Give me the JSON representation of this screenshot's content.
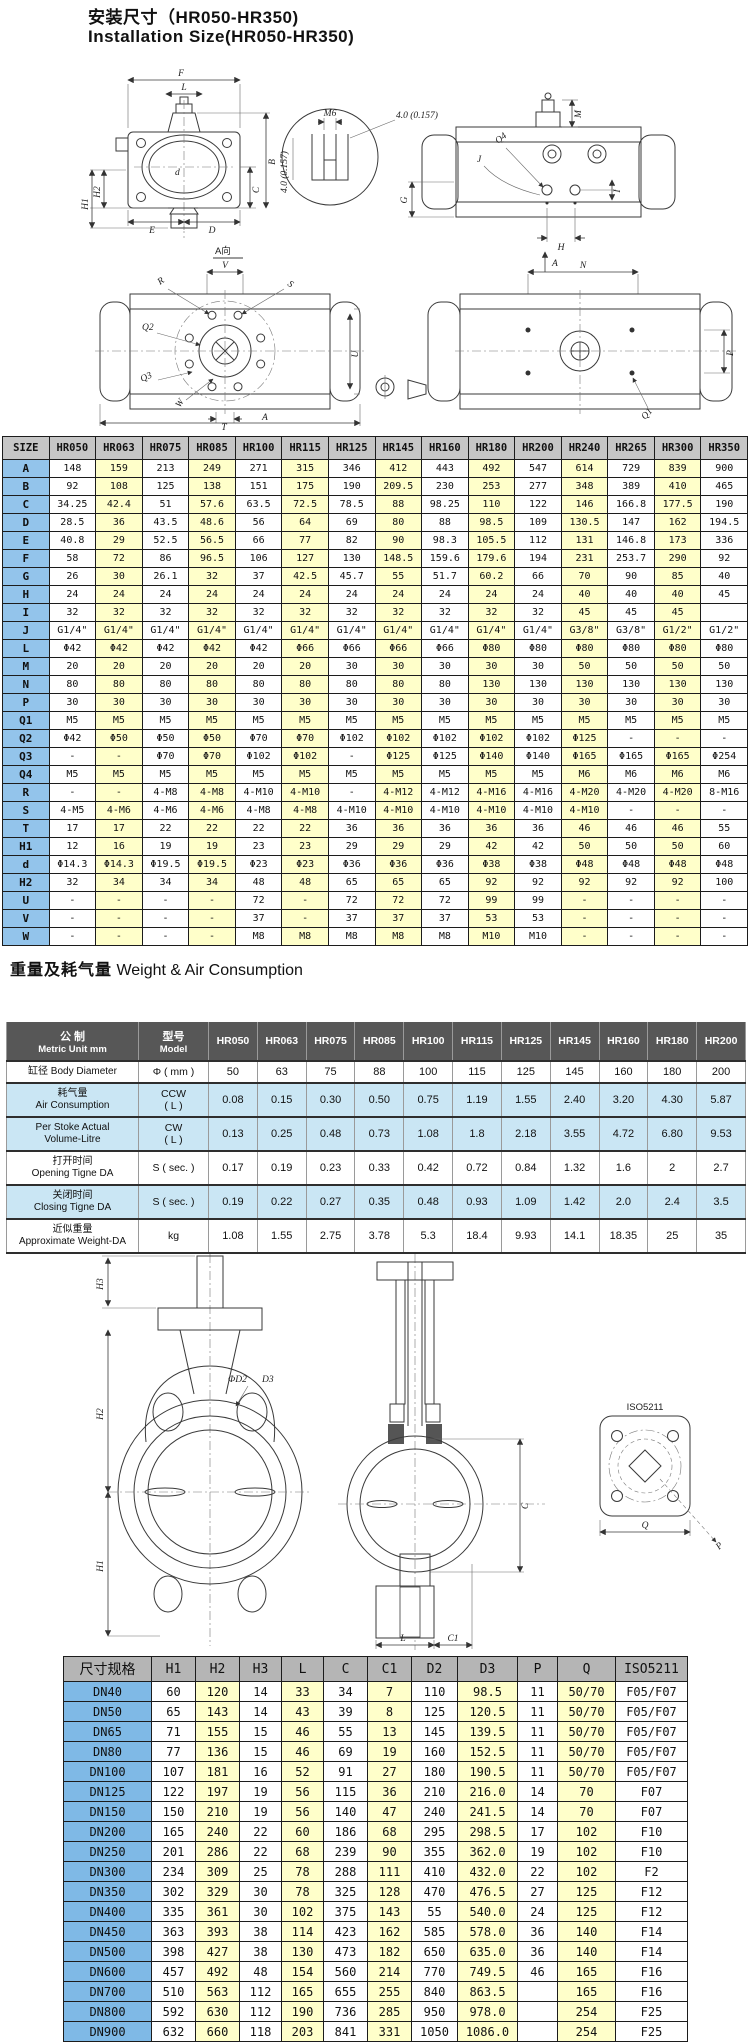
{
  "page": {
    "title_cn": "安装尺寸（HR050-HR350)",
    "title_en": "Installation Size(HR050-HR350)"
  },
  "drawing1": {
    "labels": {
      "f": "F",
      "l": "L",
      "b": "B",
      "c": "C",
      "d": "d",
      "h1": "H1",
      "h2": "H2",
      "e": "E",
      "dd": "D",
      "m6": "M6",
      "dim157": "4.0 (0.157)",
      "m": "M",
      "q4": "Q4",
      "j": "J",
      "i": "I",
      "g": "G",
      "h": "H",
      "a": "A",
      "a_view": "A向",
      "v": "V",
      "r": "R",
      "s": "S",
      "q2": "Q2",
      "q3": "Q3",
      "u": "U",
      "t": "T",
      "w": "W",
      "n": "N",
      "p": "P",
      "q1": "Q1"
    }
  },
  "table1": {
    "header": [
      "SIZE",
      "HR050",
      "HR063",
      "HR075",
      "HR085",
      "HR100",
      "HR115",
      "HR125",
      "HR145",
      "HR160",
      "HR180",
      "HR200",
      "HR240",
      "HR265",
      "HR300",
      "HR350"
    ],
    "rows": [
      {
        "label": "A",
        "values": [
          "148",
          "159",
          "213",
          "249",
          "271",
          "315",
          "346",
          "412",
          "443",
          "492",
          "547",
          "614",
          "729",
          "839",
          "900"
        ]
      },
      {
        "label": "B",
        "values": [
          "92",
          "108",
          "125",
          "138",
          "151",
          "175",
          "190",
          "209.5",
          "230",
          "253",
          "277",
          "348",
          "389",
          "410",
          "465"
        ]
      },
      {
        "label": "C",
        "values": [
          "34.25",
          "42.4",
          "51",
          "57.6",
          "63.5",
          "72.5",
          "78.5",
          "88",
          "98.25",
          "110",
          "122",
          "146",
          "166.8",
          "177.5",
          "190"
        ]
      },
      {
        "label": "D",
        "values": [
          "28.5",
          "36",
          "43.5",
          "48.6",
          "56",
          "64",
          "69",
          "80",
          "88",
          "98.5",
          "109",
          "130.5",
          "147",
          "162",
          "194.5"
        ]
      },
      {
        "label": "E",
        "values": [
          "40.8",
          "29",
          "52.5",
          "56.5",
          "66",
          "77",
          "82",
          "90",
          "98.3",
          "105.5",
          "112",
          "131",
          "146.8",
          "173",
          "336"
        ]
      },
      {
        "label": "F",
        "values": [
          "58",
          "72",
          "86",
          "96.5",
          "106",
          "127",
          "130",
          "148.5",
          "159.6",
          "179.6",
          "194",
          "231",
          "253.7",
          "290",
          "92"
        ]
      },
      {
        "label": "G",
        "values": [
          "26",
          "30",
          "26.1",
          "32",
          "37",
          "42.5",
          "45.7",
          "55",
          "51.7",
          "60.2",
          "66",
          "70",
          "90",
          "85",
          "40"
        ]
      },
      {
        "label": "H",
        "values": [
          "24",
          "24",
          "24",
          "24",
          "24",
          "24",
          "24",
          "24",
          "24",
          "24",
          "24",
          "40",
          "40",
          "40",
          "45"
        ]
      },
      {
        "label": "I",
        "values": [
          "32",
          "32",
          "32",
          "32",
          "32",
          "32",
          "32",
          "32",
          "32",
          "32",
          "32",
          "45",
          "45",
          "45",
          ""
        ]
      },
      {
        "label": "J",
        "values": [
          "G1/4\"",
          "G1/4\"",
          "G1/4\"",
          "G1/4\"",
          "G1/4\"",
          "G1/4\"",
          "G1/4\"",
          "G1/4\"",
          "G1/4\"",
          "G1/4\"",
          "G1/4\"",
          "G3/8\"",
          "G3/8\"",
          "G1/2\"",
          "G1/2\""
        ]
      },
      {
        "label": "L",
        "values": [
          "Φ42",
          "Φ42",
          "Φ42",
          "Φ42",
          "Φ42",
          "Φ66",
          "Φ66",
          "Φ66",
          "Φ66",
          "Φ80",
          "Φ80",
          "Φ80",
          "Φ80",
          "Φ80",
          "Φ80"
        ]
      },
      {
        "label": "M",
        "values": [
          "20",
          "20",
          "20",
          "20",
          "20",
          "20",
          "30",
          "30",
          "30",
          "30",
          "30",
          "50",
          "50",
          "50",
          "50"
        ]
      },
      {
        "label": "N",
        "values": [
          "80",
          "80",
          "80",
          "80",
          "80",
          "80",
          "80",
          "80",
          "80",
          "130",
          "130",
          "130",
          "130",
          "130",
          "130"
        ]
      },
      {
        "label": "P",
        "values": [
          "30",
          "30",
          "30",
          "30",
          "30",
          "30",
          "30",
          "30",
          "30",
          "30",
          "30",
          "30",
          "30",
          "30",
          "30"
        ]
      },
      {
        "label": "Q1",
        "values": [
          "M5",
          "M5",
          "M5",
          "M5",
          "M5",
          "M5",
          "M5",
          "M5",
          "M5",
          "M5",
          "M5",
          "M5",
          "M5",
          "M5",
          "M5"
        ]
      },
      {
        "label": "Q2",
        "values": [
          "Φ42",
          "Φ50",
          "Φ50",
          "Φ50",
          "Φ70",
          "Φ70",
          "Φ102",
          "Φ102",
          "Φ102",
          "Φ102",
          "Φ102",
          "Φ125",
          "-",
          "-",
          "-"
        ]
      },
      {
        "label": "Q3",
        "values": [
          "-",
          "-",
          "Φ70",
          "Φ70",
          "Φ102",
          "Φ102",
          "-",
          "Φ125",
          "Φ125",
          "Φ140",
          "Φ140",
          "Φ165",
          "Φ165",
          "Φ165",
          "Φ254"
        ]
      },
      {
        "label": "Q4",
        "values": [
          "M5",
          "M5",
          "M5",
          "M5",
          "M5",
          "M5",
          "M5",
          "M5",
          "M5",
          "M5",
          "M5",
          "M6",
          "M6",
          "M6",
          "M6"
        ]
      },
      {
        "label": "R",
        "values": [
          "-",
          "-",
          "4-M8",
          "4-M8",
          "4-M10",
          "4-M10",
          "-",
          "4-M12",
          "4-M12",
          "4-M16",
          "4-M16",
          "4-M20",
          "4-M20",
          "4-M20",
          "8-M16"
        ]
      },
      {
        "label": "S",
        "values": [
          "4-M5",
          "4-M6",
          "4-M6",
          "4-M6",
          "4-M8",
          "4-M8",
          "4-M10",
          "4-M10",
          "4-M10",
          "4-M10",
          "4-M10",
          "4-M10",
          "-",
          "-",
          "-"
        ]
      },
      {
        "label": "T",
        "values": [
          "17",
          "17",
          "22",
          "22",
          "22",
          "22",
          "36",
          "36",
          "36",
          "36",
          "36",
          "46",
          "46",
          "46",
          "55"
        ]
      },
      {
        "label": "H1",
        "values": [
          "12",
          "16",
          "19",
          "19",
          "23",
          "23",
          "29",
          "29",
          "29",
          "42",
          "42",
          "50",
          "50",
          "50",
          "60"
        ]
      },
      {
        "label": "d",
        "values": [
          "Φ14.3",
          "Φ14.3",
          "Φ19.5",
          "Φ19.5",
          "Φ23",
          "Φ23",
          "Φ36",
          "Φ36",
          "Φ36",
          "Φ38",
          "Φ38",
          "Φ48",
          "Φ48",
          "Φ48",
          "Φ48"
        ]
      },
      {
        "label": "H2",
        "values": [
          "32",
          "34",
          "34",
          "34",
          "48",
          "48",
          "65",
          "65",
          "65",
          "92",
          "92",
          "92",
          "92",
          "92",
          "100"
        ]
      },
      {
        "label": "U",
        "values": [
          "-",
          "-",
          "-",
          "-",
          "72",
          "-",
          "72",
          "72",
          "72",
          "99",
          "99",
          "-",
          "-",
          "-",
          "-"
        ]
      },
      {
        "label": "V",
        "values": [
          "-",
          "-",
          "-",
          "-",
          "37",
          "-",
          "37",
          "37",
          "37",
          "53",
          "53",
          "-",
          "-",
          "-",
          "-"
        ]
      },
      {
        "label": "W",
        "values": [
          "-",
          "-",
          "-",
          "-",
          "M8",
          "M8",
          "M8",
          "M8",
          "M8",
          "M10",
          "M10",
          "-",
          "-",
          "-",
          "-"
        ]
      }
    ]
  },
  "section2": {
    "title_cn": "重量及耗气量",
    "title_en": "Weight & Air Consumption"
  },
  "table2": {
    "header": {
      "col1_cn": "公 制",
      "col1_en": "Metric Unit mm",
      "col2_cn": "型号",
      "col2_en": "Model",
      "models": [
        "HR050",
        "HR063",
        "HR075",
        "HR085",
        "HR100",
        "HR115",
        "HR125",
        "HR145",
        "HR160",
        "HR180",
        "HR200"
      ]
    },
    "rows": [
      {
        "tone": "white",
        "label_lines": [
          "缸径  Body Diameter"
        ],
        "unit_lines": [
          "Φ ( mm )"
        ],
        "values": [
          "50",
          "63",
          "75",
          "88",
          "100",
          "115",
          "125",
          "145",
          "160",
          "180",
          "200"
        ]
      },
      {
        "tone": "blue",
        "label_lines": [
          "耗气量",
          "Air Consumption"
        ],
        "unit_lines": [
          "CCW",
          "( L )"
        ],
        "values": [
          "0.08",
          "0.15",
          "0.30",
          "0.50",
          "0.75",
          "1.19",
          "1.55",
          "2.40",
          "3.20",
          "4.30",
          "5.87"
        ]
      },
      {
        "tone": "blue",
        "label_lines": [
          "Per Stoke Actual",
          "Volume-Litre"
        ],
        "unit_lines": [
          "CW",
          "( L )"
        ],
        "values": [
          "0.13",
          "0.25",
          "0.48",
          "0.73",
          "1.08",
          "1.8",
          "2.18",
          "3.55",
          "4.72",
          "6.80",
          "9.53"
        ]
      },
      {
        "tone": "white",
        "label_lines": [
          "打开时间",
          "Opening Tigne DA"
        ],
        "unit_lines": [
          "S ( sec. )"
        ],
        "values": [
          "0.17",
          "0.19",
          "0.23",
          "0.33",
          "0.42",
          "0.72",
          "0.84",
          "1.32",
          "1.6",
          "2",
          "2.7"
        ]
      },
      {
        "tone": "blue",
        "label_lines": [
          "关闭时间",
          "Closing Tigne DA"
        ],
        "unit_lines": [
          "S ( sec. )"
        ],
        "values": [
          "0.19",
          "0.22",
          "0.27",
          "0.35",
          "0.48",
          "0.93",
          "1.09",
          "1.42",
          "2.0",
          "2.4",
          "3.5"
        ]
      },
      {
        "tone": "white",
        "label_lines": [
          "近似重量",
          "Approximate Weight-DA"
        ],
        "unit_lines": [
          "kg"
        ],
        "values": [
          "1.08",
          "1.55",
          "2.75",
          "3.78",
          "5.3",
          "18.4",
          "9.93",
          "14.1",
          "18.35",
          "25",
          "35"
        ]
      }
    ]
  },
  "drawing2": {
    "labels": {
      "h3": "H3",
      "h2": "H2",
      "h1": "H1",
      "phid2": "ΦD2",
      "d3": "D3",
      "c": "C",
      "l": "L",
      "c1": "C1",
      "iso": "ISO5211",
      "q": "Q",
      "p": "P"
    }
  },
  "table3": {
    "header": [
      "尺寸规格",
      "H1",
      "H2",
      "H3",
      "L",
      "C",
      "C1",
      "D2",
      "D3",
      "P",
      "Q",
      "ISO5211"
    ],
    "rows": [
      [
        "DN40",
        "60",
        "120",
        "14",
        "33",
        "34",
        "7",
        "110",
        "98.5",
        "11",
        "50/70",
        "F05/F07"
      ],
      [
        "DN50",
        "65",
        "143",
        "14",
        "43",
        "39",
        "8",
        "125",
        "120.5",
        "11",
        "50/70",
        "F05/F07"
      ],
      [
        "DN65",
        "71",
        "155",
        "15",
        "46",
        "55",
        "13",
        "145",
        "139.5",
        "11",
        "50/70",
        "F05/F07"
      ],
      [
        "DN80",
        "77",
        "136",
        "15",
        "46",
        "69",
        "19",
        "160",
        "152.5",
        "11",
        "50/70",
        "F05/F07"
      ],
      [
        "DN100",
        "107",
        "181",
        "16",
        "52",
        "91",
        "27",
        "180",
        "190.5",
        "11",
        "50/70",
        "F05/F07"
      ],
      [
        "DN125",
        "122",
        "197",
        "19",
        "56",
        "115",
        "36",
        "210",
        "216.0",
        "14",
        "70",
        "F07"
      ],
      [
        "DN150",
        "150",
        "210",
        "19",
        "56",
        "140",
        "47",
        "240",
        "241.5",
        "14",
        "70",
        "F07"
      ],
      [
        "DN200",
        "165",
        "240",
        "22",
        "60",
        "186",
        "68",
        "295",
        "298.5",
        "17",
        "102",
        "F10"
      ],
      [
        "DN250",
        "201",
        "286",
        "22",
        "68",
        "239",
        "90",
        "355",
        "362.0",
        "19",
        "102",
        "F10"
      ],
      [
        "DN300",
        "234",
        "309",
        "25",
        "78",
        "288",
        "111",
        "410",
        "432.0",
        "22",
        "102",
        "F2"
      ],
      [
        "DN350",
        "302",
        "329",
        "30",
        "78",
        "325",
        "128",
        "470",
        "476.5",
        "27",
        "125",
        "F12"
      ],
      [
        "DN400",
        "335",
        "361",
        "30",
        "102",
        "375",
        "143",
        "55",
        "540.0",
        "24",
        "125",
        "F12"
      ],
      [
        "DN450",
        "363",
        "393",
        "38",
        "114",
        "423",
        "162",
        "585",
        "578.0",
        "36",
        "140",
        "F14"
      ],
      [
        "DN500",
        "398",
        "427",
        "38",
        "130",
        "473",
        "182",
        "650",
        "635.0",
        "36",
        "140",
        "F14"
      ],
      [
        "DN600",
        "457",
        "492",
        "48",
        "154",
        "560",
        "214",
        "770",
        "749.5",
        "46",
        "165",
        "F16"
      ],
      [
        "DN700",
        "510",
        "563",
        "112",
        "165",
        "655",
        "255",
        "840",
        "863.5",
        "",
        "165",
        "F16"
      ],
      [
        "DN800",
        "592",
        "630",
        "112",
        "190",
        "736",
        "285",
        "950",
        "978.0",
        "",
        "254",
        "F25"
      ],
      [
        "DN900",
        "632",
        "660",
        "118",
        "203",
        "841",
        "331",
        "1050",
        "1086.0",
        "",
        "254",
        "F25"
      ]
    ]
  }
}
